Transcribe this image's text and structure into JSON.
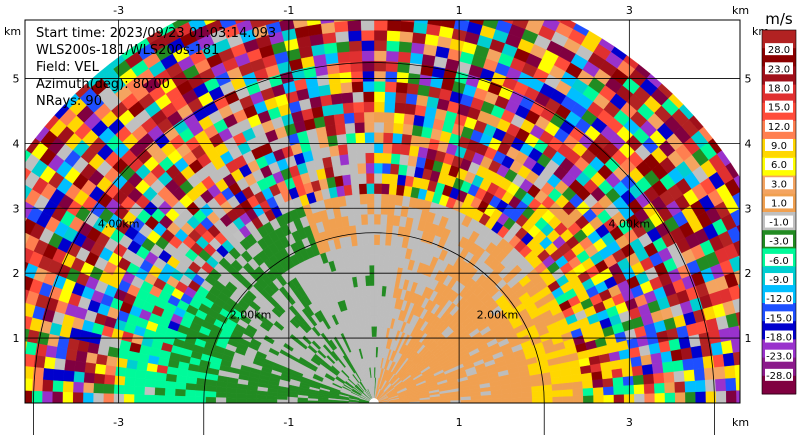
{
  "info": {
    "start_time": "Start time: 2023/09/23 01:03:14.093",
    "instrument": "WLS200s-181/WLS200s-181",
    "field": "Field: VEL",
    "azimuth": "Azimuth(deg): 80.00",
    "nrays": "NRays: 90"
  },
  "chart_data": {
    "type": "ppi_scan",
    "field": "VEL",
    "units": "m/s",
    "x_unit_label": "km",
    "y_unit_label": "km",
    "xlim": [
      -4.1,
      4.3
    ],
    "ylim": [
      0,
      5.9
    ],
    "x_ticks": [
      -3,
      -1,
      1,
      3
    ],
    "y_ticks": [
      1,
      2,
      3,
      4,
      5
    ],
    "max_range_km": 5.05,
    "range_rings": [
      {
        "radius": 2,
        "labels": [
          "2.00km",
          "2.00km"
        ]
      },
      {
        "radius": 4,
        "labels": [
          "4.00km",
          "4.00km"
        ]
      }
    ],
    "colorbar": {
      "title": "m/s",
      "levels": [
        "28.0",
        "23.0",
        "18.0",
        "15.0",
        "12.0",
        "9.0",
        "6.0",
        "3.0",
        "1.0",
        "-1.0",
        "-3.0",
        "-6.0",
        "-9.0",
        "-12.0",
        "-15.0",
        "-18.0",
        "-23.0",
        "-28.0"
      ],
      "colors": [
        "#b22222",
        "#8b0000",
        "#a0101a",
        "#e03030",
        "#ff4c3a",
        "#ff7f50",
        "#ffd700",
        "#ffff00",
        "#f4a460",
        "#f0a050",
        "#c0c0c0",
        "#228b22",
        "#00fa9a",
        "#00ced1",
        "#00bfff",
        "#1e4fff",
        "#0000cd",
        "#9932cc",
        "#8b1a8b",
        "#800040"
      ]
    },
    "regions": [
      {
        "label": "near-zero velocity (grey)",
        "value_range": [
          -1.0,
          1.0
        ]
      },
      {
        "label": "slight receding (orange) to the east",
        "value_range": [
          1.0,
          3.0
        ]
      },
      {
        "label": "approaching (green) to the west",
        "value_range": [
          -6.0,
          -1.0
        ]
      },
      {
        "label": "noise in far ranges",
        "value_range": [
          -28.0,
          28.0
        ]
      }
    ]
  }
}
